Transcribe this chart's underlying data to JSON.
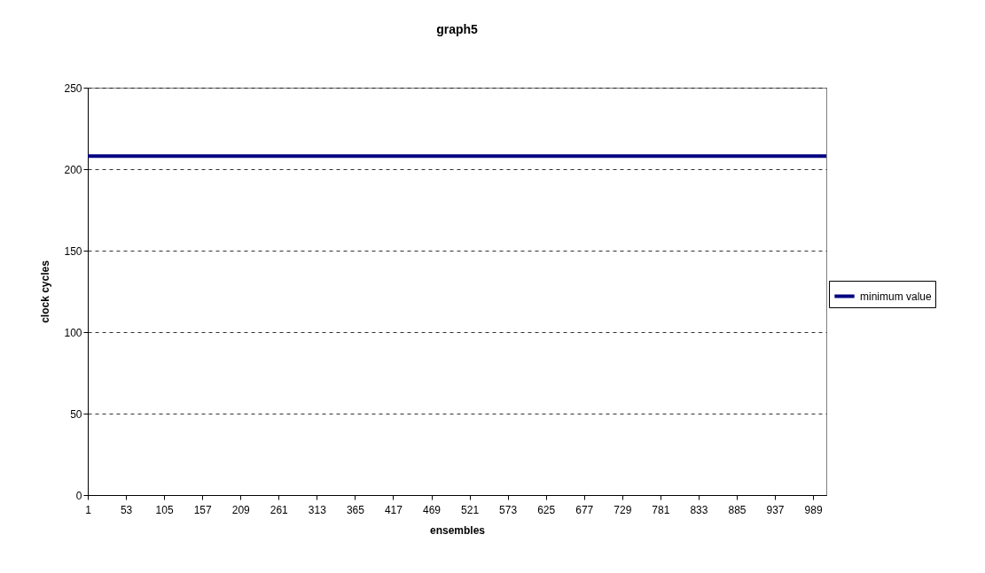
{
  "chart_data": {
    "type": "line",
    "title": "graph5",
    "xlabel": "ensembles",
    "ylabel": "clock cycles",
    "x": [
      1,
      1007
    ],
    "series": [
      {
        "name": "minimum value",
        "color": "#000080",
        "values": [
          208,
          208
        ]
      }
    ],
    "xlim": [
      1,
      1007
    ],
    "xticks": [
      1,
      53,
      105,
      157,
      209,
      261,
      313,
      365,
      417,
      469,
      521,
      573,
      625,
      677,
      729,
      781,
      833,
      885,
      937,
      989
    ],
    "ylim": [
      0,
      250
    ],
    "yticks": [
      0,
      50,
      100,
      150,
      200,
      250
    ],
    "grid": "y",
    "legend": "right",
    "line_style": "solid",
    "marker": "none"
  }
}
